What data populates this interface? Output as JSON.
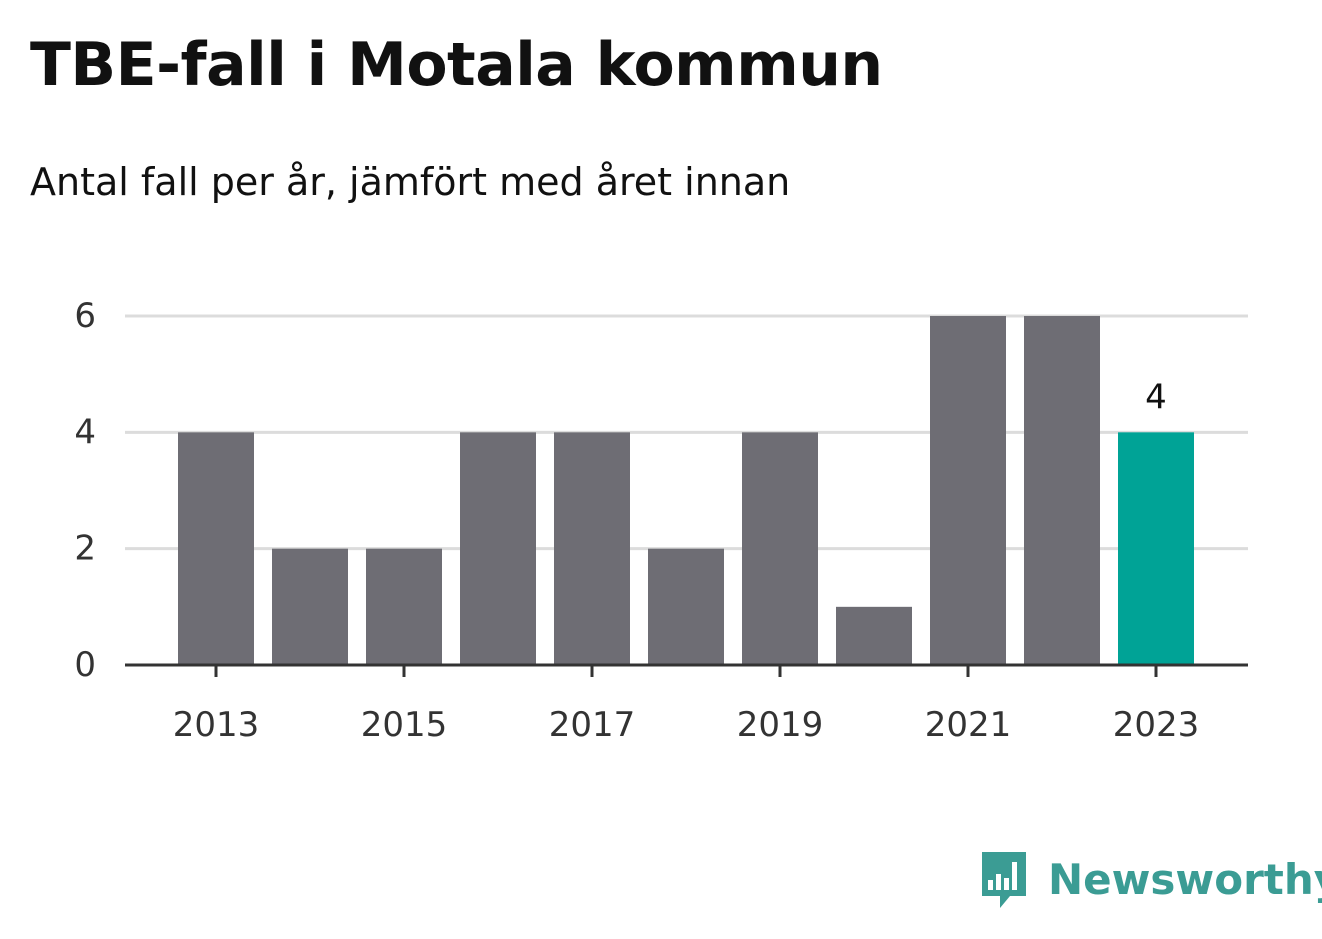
{
  "colors": {
    "bar": "#6e6d74",
    "highlight": "#00a396",
    "grid": "#dcdcdc",
    "axis": "#333333",
    "brand": "#3b9c94"
  },
  "brand": {
    "name": "Newsworthy",
    "icon": "bar-chart-logo-icon"
  },
  "chart_data": {
    "type": "bar",
    "title": "TBE-fall i Motala kommun",
    "subtitle": "Antal fall per år, jämfört med året innan",
    "xlabel": "",
    "ylabel": "",
    "categories": [
      "2013",
      "2014",
      "2015",
      "2016",
      "2017",
      "2018",
      "2019",
      "2020",
      "2021",
      "2022",
      "2023"
    ],
    "values": [
      4,
      2,
      2,
      4,
      4,
      2,
      4,
      1,
      6,
      6,
      4
    ],
    "highlight_index": 10,
    "highlight_label": "4",
    "x_tick_labels": [
      "2013",
      "2015",
      "2017",
      "2019",
      "2021",
      "2023"
    ],
    "y_ticks": [
      0,
      2,
      4,
      6
    ],
    "ylim": [
      0,
      6
    ],
    "grid": true,
    "legend": "none"
  }
}
